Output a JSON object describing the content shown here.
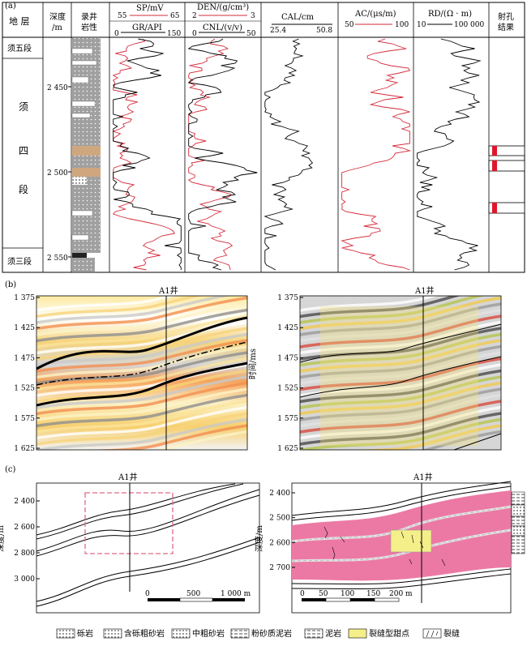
{
  "panel_a": {
    "label": "(a)",
    "headers": {
      "strata": "地 层",
      "depth": "深度\n/m",
      "lithology": "录井\n岩性",
      "sp": "SP/mV",
      "sp_min": "55",
      "sp_max": "65",
      "gr": "GR/API",
      "gr_min": "0",
      "gr_max": "150",
      "den": "DEN/(g/cm³)",
      "den_min": "2",
      "den_max": "3",
      "cnl": "CNL/(v/v)",
      "cnl_min": "0",
      "cnl_max": "50",
      "cal": "CAL/cm",
      "cal_min": "25.4",
      "cal_max": "50.8",
      "ac": "AC/(μs/m)",
      "ac_min": "50",
      "ac_max": "100",
      "rd": "RD/(Ω · m)",
      "rd_min": "10",
      "rd_max": "100 000",
      "perf": "射孔\n结果"
    },
    "strata": [
      "须五段",
      "须",
      "四",
      "段",
      "须三段"
    ],
    "depth_ticks": [
      "2 450",
      "2 500",
      "2 550"
    ],
    "colors": {
      "red_curve": "#d42a3a",
      "perf": "#e0162b",
      "tan": "#cfa77f",
      "gray": "#a9a9a9"
    }
  },
  "panel_b": {
    "label": "(b)",
    "well": "A1井",
    "ylabel": "时间/ms",
    "yticks": [
      "1 375",
      "1 425",
      "1 475",
      "1 525",
      "1 575",
      "1 625"
    ]
  },
  "panel_c": {
    "label": "(c)",
    "well": "A1井",
    "ylabel": "深度/m",
    "left_yticks": [
      "2 400",
      "2 600",
      "2 800",
      "3 000"
    ],
    "left_scale": [
      "0",
      "500",
      "1 000 m"
    ],
    "right_yticks": [
      "2 400",
      "2 500",
      "2 600",
      "2 700"
    ],
    "right_scale": [
      "0",
      "50",
      "100",
      "150",
      "200 m"
    ],
    "colors": {
      "pink": "#ec79a4",
      "yellow": "#f5ef8a",
      "dash_box": "#e06a86"
    }
  },
  "legend": [
    "砾岩",
    "含砾粗砂岩",
    "中粗砂岩",
    "粉砂质泥岩",
    "泥岩",
    "裂缝型甜点",
    "裂缝"
  ]
}
